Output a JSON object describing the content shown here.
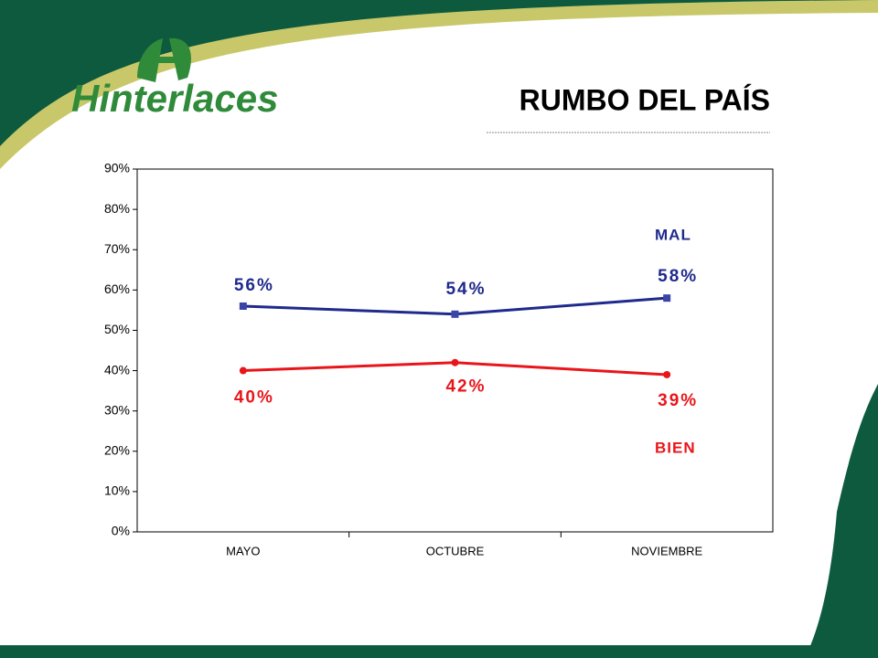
{
  "brand": "Hinterlaces",
  "chart_data": {
    "type": "line",
    "title": "RUMBO DEL PAÍS",
    "categories": [
      "MAYO",
      "OCTUBRE",
      "NOVIEMBRE"
    ],
    "series": [
      {
        "name": "MAL",
        "color": "#1f2a8c",
        "marker": "square",
        "values": [
          56,
          54,
          58
        ],
        "value_labels": [
          "56%",
          "54%",
          "58%"
        ]
      },
      {
        "name": "BIEN",
        "color": "#e8161b",
        "marker": "circle",
        "values": [
          40,
          42,
          39
        ],
        "value_labels": [
          "40%",
          "42%",
          "39%"
        ]
      }
    ],
    "ylim": [
      0,
      90
    ],
    "yticks": [
      {
        "value": 0,
        "label": "0%"
      },
      {
        "value": 10,
        "label": "10%"
      },
      {
        "value": 20,
        "label": "20%"
      },
      {
        "value": 30,
        "label": "30%"
      },
      {
        "value": 40,
        "label": "40%"
      },
      {
        "value": 50,
        "label": "50%"
      },
      {
        "value": 60,
        "label": "60%"
      },
      {
        "value": 70,
        "label": "70%"
      },
      {
        "value": 80,
        "label": "80%"
      },
      {
        "value": 90,
        "label": "90%"
      }
    ]
  }
}
